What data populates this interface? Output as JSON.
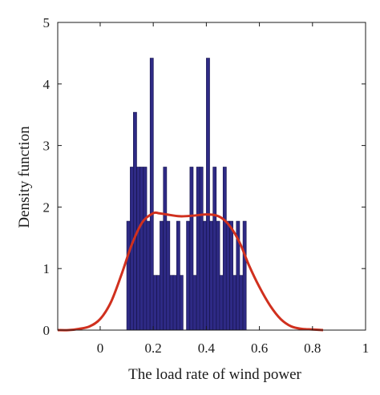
{
  "chart_data": {
    "type": "bar",
    "title": "",
    "xlabel": "The load rate of wind power",
    "ylabel": "Density function",
    "xlim": [
      -0.16,
      1.0
    ],
    "ylim": [
      0,
      5
    ],
    "xticks": [
      0,
      0.2,
      0.4,
      0.6,
      0.8,
      1
    ],
    "yticks": [
      0,
      1,
      2,
      3,
      4,
      5
    ],
    "xtick_labels": [
      "0",
      "0.2",
      "0.4",
      "0.6",
      "0.8",
      "1"
    ],
    "ytick_labels": [
      "0",
      "1",
      "2",
      "3",
      "4",
      "5"
    ],
    "grid": false,
    "legend": "none",
    "colors": {
      "bars": "#2e2a85",
      "bar_edge": "#15124a",
      "curve": "#d0301e",
      "axis": "#1a1a1a"
    },
    "series": [
      {
        "kind": "histogram",
        "bin_width": 0.0125,
        "bins": [
          {
            "x0": 0.1,
            "value": 1.77
          },
          {
            "x0": 0.113,
            "value": 2.65
          },
          {
            "x0": 0.125,
            "value": 3.54
          },
          {
            "x0": 0.138,
            "value": 2.65
          },
          {
            "x0": 0.15,
            "value": 2.65
          },
          {
            "x0": 0.163,
            "value": 2.65
          },
          {
            "x0": 0.175,
            "value": 1.77
          },
          {
            "x0": 0.188,
            "value": 4.42
          },
          {
            "x0": 0.2,
            "value": 0.89
          },
          {
            "x0": 0.213,
            "value": 0.89
          },
          {
            "x0": 0.225,
            "value": 1.77
          },
          {
            "x0": 0.238,
            "value": 2.65
          },
          {
            "x0": 0.25,
            "value": 1.77
          },
          {
            "x0": 0.263,
            "value": 0.89
          },
          {
            "x0": 0.275,
            "value": 0.89
          },
          {
            "x0": 0.288,
            "value": 1.77
          },
          {
            "x0": 0.3,
            "value": 0.89
          },
          {
            "x0": 0.313,
            "value": 0
          },
          {
            "x0": 0.325,
            "value": 1.77
          },
          {
            "x0": 0.338,
            "value": 2.65
          },
          {
            "x0": 0.35,
            "value": 0.89
          },
          {
            "x0": 0.363,
            "value": 2.65
          },
          {
            "x0": 0.375,
            "value": 2.65
          },
          {
            "x0": 0.388,
            "value": 1.77
          },
          {
            "x0": 0.4,
            "value": 4.42
          },
          {
            "x0": 0.413,
            "value": 1.77
          },
          {
            "x0": 0.425,
            "value": 2.65
          },
          {
            "x0": 0.438,
            "value": 1.77
          },
          {
            "x0": 0.45,
            "value": 0.89
          },
          {
            "x0": 0.463,
            "value": 2.65
          },
          {
            "x0": 0.475,
            "value": 1.77
          },
          {
            "x0": 0.488,
            "value": 1.77
          },
          {
            "x0": 0.5,
            "value": 0.89
          },
          {
            "x0": 0.513,
            "value": 1.77
          },
          {
            "x0": 0.525,
            "value": 0.89
          },
          {
            "x0": 0.538,
            "value": 1.77
          }
        ]
      },
      {
        "kind": "density-curve",
        "x": [
          -0.16,
          -0.12,
          -0.08,
          -0.04,
          0.0,
          0.04,
          0.08,
          0.12,
          0.16,
          0.2,
          0.22,
          0.25,
          0.3,
          0.35,
          0.4,
          0.44,
          0.47,
          0.5,
          0.53,
          0.56,
          0.6,
          0.64,
          0.68,
          0.72,
          0.76,
          0.8,
          0.84
        ],
        "y": [
          0.0,
          0.0,
          0.02,
          0.06,
          0.18,
          0.45,
          0.9,
          1.4,
          1.76,
          1.9,
          1.9,
          1.88,
          1.85,
          1.86,
          1.88,
          1.86,
          1.78,
          1.62,
          1.38,
          1.06,
          0.7,
          0.4,
          0.18,
          0.06,
          0.02,
          0.01,
          0.0
        ]
      }
    ]
  }
}
